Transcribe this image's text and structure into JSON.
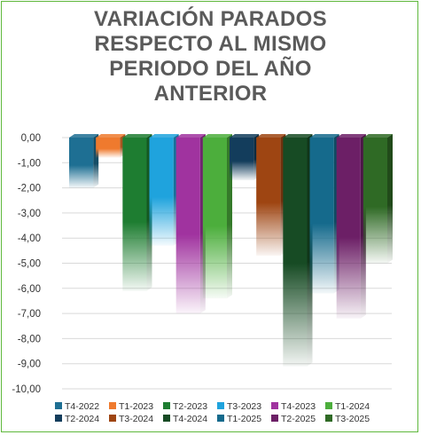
{
  "chart_data": {
    "type": "bar",
    "title_lines": [
      "VARIACIÓN PARADOS",
      "RESPECTO AL MISMO",
      "PERIODO DEL AÑO",
      "ANTERIOR"
    ],
    "ylim": [
      -10,
      0
    ],
    "y_ticks": [
      "0,00",
      "-1,00",
      "-2,00",
      "-3,00",
      "-4,00",
      "-5,00",
      "-6,00",
      "-7,00",
      "-8,00",
      "-9,00",
      "-10,00"
    ],
    "grid": true,
    "legend_position": "bottom",
    "categories": [
      "T4-2022",
      "T1-2023",
      "T2-2023",
      "T3-2023",
      "T4-2023",
      "T1-2024",
      "T2-2024",
      "T3-2024",
      "T4-2024",
      "T1-2025",
      "T2-2025",
      "T3-2025"
    ],
    "series": [
      {
        "name": "T4-2022",
        "value": -2.0,
        "color": "#1e6f93"
      },
      {
        "name": "T1-2023",
        "value": -0.8,
        "color": "#ef7a2e"
      },
      {
        "name": "T2-2023",
        "value": -6.1,
        "color": "#1e7d31"
      },
      {
        "name": "T3-2023",
        "value": -4.3,
        "color": "#1fa3dd"
      },
      {
        "name": "T4-2023",
        "value": -7.0,
        "color": "#a0339f"
      },
      {
        "name": "T1-2024",
        "value": -6.4,
        "color": "#4cae3c"
      },
      {
        "name": "T2-2024",
        "value": -1.7,
        "color": "#133d5c"
      },
      {
        "name": "T3-2024",
        "value": -4.7,
        "color": "#9e4512"
      },
      {
        "name": "T4-2024",
        "value": -9.1,
        "color": "#174b24"
      },
      {
        "name": "T1-2025",
        "value": -6.2,
        "color": "#156a8c"
      },
      {
        "name": "T2-2025",
        "value": -7.2,
        "color": "#6c1f66"
      },
      {
        "name": "T3-2025",
        "value": -5.0,
        "color": "#2f6a25"
      }
    ]
  }
}
